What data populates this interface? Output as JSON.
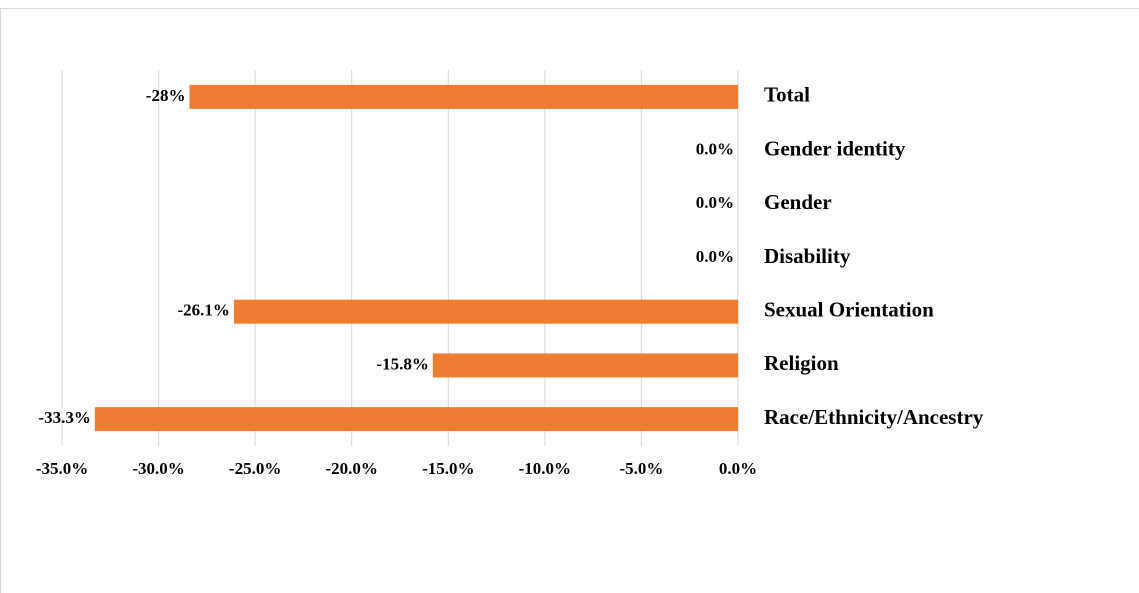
{
  "chart_data": {
    "type": "bar",
    "orientation": "horizontal",
    "categories": [
      "Total",
      "Gender identity",
      "Gender",
      "Disability",
      "Sexual Orientation",
      "Religion",
      "Race/Ethnicity/Ancestry"
    ],
    "values": [
      -28.4,
      0,
      0,
      0,
      -26.1,
      -15.8,
      -33.3
    ],
    "value_labels": [
      "-28%",
      "0.0%",
      "0.0%",
      "0.0%",
      "-26.1%",
      "-15.8%",
      "-33.3%"
    ],
    "color": "#ed7d31",
    "xlim": [
      -35,
      0
    ],
    "xticks": [
      {
        "value": -35,
        "label": "-35.0%"
      },
      {
        "value": -30,
        "label": "-30.0%"
      },
      {
        "value": -25,
        "label": "-25.0%"
      },
      {
        "value": -20,
        "label": "-20.0%"
      },
      {
        "value": -15,
        "label": "-15.0%"
      },
      {
        "value": -10,
        "label": "-10.0%"
      },
      {
        "value": -5,
        "label": "-5.0%"
      },
      {
        "value": 0,
        "label": "0.0%"
      }
    ],
    "grid": true
  }
}
